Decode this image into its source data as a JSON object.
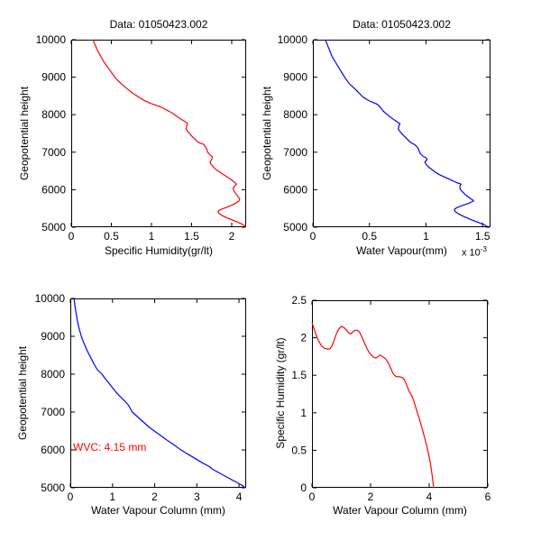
{
  "chart_data": [
    {
      "type": "line",
      "name": "specific-humidity-vs-height",
      "title": "Data: 01050423.002",
      "xlabel": "Specific Humidity(gr/lt)",
      "ylabel": "Geopotential height",
      "line_color": "#ff0000",
      "grid": false,
      "xlim": [
        0,
        2.18
      ],
      "ylim": [
        5000,
        10000
      ],
      "xticks": [
        0,
        0.5,
        1,
        1.5,
        2
      ],
      "xtick_labels": [
        "0",
        "0.5",
        "1",
        "1.5",
        "2"
      ],
      "yticks": [
        5000,
        6000,
        7000,
        8000,
        9000,
        10000
      ],
      "ytick_labels": [
        "5000",
        "6000",
        "7000",
        "8000",
        "9000",
        "10000"
      ],
      "points": [
        [
          0.27,
          10000
        ],
        [
          0.3,
          9850
        ],
        [
          0.33,
          9700
        ],
        [
          0.37,
          9550
        ],
        [
          0.41,
          9400
        ],
        [
          0.46,
          9250
        ],
        [
          0.51,
          9100
        ],
        [
          0.56,
          8960
        ],
        [
          0.62,
          8830
        ],
        [
          0.68,
          8720
        ],
        [
          0.75,
          8600
        ],
        [
          0.83,
          8480
        ],
        [
          0.91,
          8380
        ],
        [
          0.99,
          8300
        ],
        [
          1.06,
          8250
        ],
        [
          1.1,
          8220
        ],
        [
          1.13,
          8190
        ],
        [
          1.21,
          8100
        ],
        [
          1.27,
          8030
        ],
        [
          1.32,
          7950
        ],
        [
          1.37,
          7880
        ],
        [
          1.43,
          7800
        ],
        [
          1.45,
          7770
        ],
        [
          1.44,
          7700
        ],
        [
          1.43,
          7620
        ],
        [
          1.45,
          7560
        ],
        [
          1.48,
          7480
        ],
        [
          1.52,
          7390
        ],
        [
          1.55,
          7330
        ],
        [
          1.58,
          7270
        ],
        [
          1.62,
          7230
        ],
        [
          1.65,
          7210
        ],
        [
          1.67,
          7150
        ],
        [
          1.69,
          7080
        ],
        [
          1.7,
          7000
        ],
        [
          1.73,
          6930
        ],
        [
          1.76,
          6870
        ],
        [
          1.75,
          6800
        ],
        [
          1.73,
          6740
        ],
        [
          1.74,
          6680
        ],
        [
          1.77,
          6610
        ],
        [
          1.8,
          6540
        ],
        [
          1.85,
          6470
        ],
        [
          1.9,
          6400
        ],
        [
          1.95,
          6330
        ],
        [
          2.0,
          6260
        ],
        [
          2.04,
          6190
        ],
        [
          2.06,
          6150
        ],
        [
          2.04,
          6100
        ],
        [
          2.02,
          6050
        ],
        [
          2.02,
          6000
        ],
        [
          2.04,
          5930
        ],
        [
          2.06,
          5870
        ],
        [
          2.08,
          5810
        ],
        [
          2.1,
          5750
        ],
        [
          2.09,
          5700
        ],
        [
          2.05,
          5640
        ],
        [
          1.99,
          5580
        ],
        [
          1.92,
          5520
        ],
        [
          1.86,
          5470
        ],
        [
          1.83,
          5430
        ],
        [
          1.84,
          5370
        ],
        [
          1.88,
          5310
        ],
        [
          1.94,
          5250
        ],
        [
          2.01,
          5190
        ],
        [
          2.08,
          5130
        ],
        [
          2.13,
          5080
        ],
        [
          2.16,
          5040
        ],
        [
          2.18,
          5000
        ]
      ]
    },
    {
      "type": "line",
      "name": "water-vapour-vs-height",
      "title": "Data: 01050423.002",
      "xlabel": "Water Vapour(mm)",
      "ylabel": "Geopotential height",
      "x_scale_label": {
        "prefix": "x 10",
        "exponent": "-3"
      },
      "line_color": "#0000ff",
      "grid": false,
      "xlim": [
        0,
        1.57
      ],
      "ylim": [
        5000,
        10000
      ],
      "xticks": [
        0,
        0.5,
        1,
        1.5
      ],
      "xtick_labels": [
        "0",
        "0.5",
        "1",
        "1.5"
      ],
      "yticks": [
        5000,
        6000,
        7000,
        8000,
        9000,
        10000
      ],
      "ytick_labels": [
        "5000",
        "6000",
        "7000",
        "8000",
        "9000",
        "10000"
      ],
      "points": [
        [
          0.11,
          10000
        ],
        [
          0.13,
          9850
        ],
        [
          0.15,
          9700
        ],
        [
          0.17,
          9550
        ],
        [
          0.2,
          9400
        ],
        [
          0.23,
          9250
        ],
        [
          0.26,
          9100
        ],
        [
          0.29,
          8960
        ],
        [
          0.32,
          8830
        ],
        [
          0.36,
          8720
        ],
        [
          0.4,
          8600
        ],
        [
          0.44,
          8480
        ],
        [
          0.48,
          8400
        ],
        [
          0.52,
          8340
        ],
        [
          0.56,
          8290
        ],
        [
          0.58,
          8250
        ],
        [
          0.6,
          8180
        ],
        [
          0.62,
          8100
        ],
        [
          0.65,
          8020
        ],
        [
          0.68,
          7950
        ],
        [
          0.71,
          7880
        ],
        [
          0.75,
          7800
        ],
        [
          0.77,
          7760
        ],
        [
          0.76,
          7700
        ],
        [
          0.755,
          7620
        ],
        [
          0.77,
          7550
        ],
        [
          0.79,
          7480
        ],
        [
          0.82,
          7390
        ],
        [
          0.84,
          7330
        ],
        [
          0.86,
          7270
        ],
        [
          0.9,
          7200
        ],
        [
          0.92,
          7150
        ],
        [
          0.93,
          7100
        ],
        [
          0.94,
          7030
        ],
        [
          0.95,
          6960
        ],
        [
          0.97,
          6900
        ],
        [
          1.0,
          6850
        ],
        [
          1.01,
          6800
        ],
        [
          0.99,
          6740
        ],
        [
          1.0,
          6680
        ],
        [
          1.02,
          6610
        ],
        [
          1.05,
          6540
        ],
        [
          1.08,
          6470
        ],
        [
          1.12,
          6400
        ],
        [
          1.17,
          6330
        ],
        [
          1.22,
          6260
        ],
        [
          1.27,
          6190
        ],
        [
          1.31,
          6150
        ],
        [
          1.3,
          6100
        ],
        [
          1.3,
          6040
        ],
        [
          1.31,
          5980
        ],
        [
          1.33,
          5920
        ],
        [
          1.35,
          5860
        ],
        [
          1.38,
          5790
        ],
        [
          1.41,
          5730
        ],
        [
          1.42,
          5700
        ],
        [
          1.38,
          5640
        ],
        [
          1.32,
          5580
        ],
        [
          1.27,
          5520
        ],
        [
          1.25,
          5470
        ],
        [
          1.26,
          5410
        ],
        [
          1.29,
          5350
        ],
        [
          1.34,
          5280
        ],
        [
          1.4,
          5200
        ],
        [
          1.46,
          5130
        ],
        [
          1.51,
          5070
        ],
        [
          1.55,
          5010
        ]
      ]
    },
    {
      "type": "line",
      "name": "water-vapour-column-vs-height",
      "title": "",
      "xlabel": "Water Vapour Column (mm)",
      "ylabel": "Geopotential height",
      "annotation": {
        "text": "WVC: 4.15 mm",
        "color": "#ff0000"
      },
      "line_color": "#0000ff",
      "grid": false,
      "xlim": [
        0,
        4.17
      ],
      "ylim": [
        5000,
        10000
      ],
      "xticks": [
        0,
        1,
        2,
        3,
        4
      ],
      "xtick_labels": [
        "0",
        "1",
        "2",
        "3",
        "4"
      ],
      "yticks": [
        5000,
        6000,
        7000,
        8000,
        9000,
        10000
      ],
      "ytick_labels": [
        "5000",
        "6000",
        "7000",
        "8000",
        "9000",
        "10000"
      ],
      "points": [
        [
          0.09,
          10000
        ],
        [
          0.11,
          9800
        ],
        [
          0.14,
          9600
        ],
        [
          0.17,
          9400
        ],
        [
          0.21,
          9200
        ],
        [
          0.26,
          9000
        ],
        [
          0.31,
          8850
        ],
        [
          0.37,
          8700
        ],
        [
          0.43,
          8550
        ],
        [
          0.5,
          8400
        ],
        [
          0.57,
          8250
        ],
        [
          0.64,
          8120
        ],
        [
          0.75,
          8000
        ],
        [
          0.83,
          7880
        ],
        [
          0.92,
          7760
        ],
        [
          1.0,
          7640
        ],
        [
          1.08,
          7530
        ],
        [
          1.18,
          7410
        ],
        [
          1.28,
          7300
        ],
        [
          1.38,
          7180
        ],
        [
          1.47,
          7000
        ],
        [
          1.6,
          6870
        ],
        [
          1.72,
          6750
        ],
        [
          1.85,
          6620
        ],
        [
          1.99,
          6500
        ],
        [
          2.14,
          6380
        ],
        [
          2.29,
          6260
        ],
        [
          2.45,
          6140
        ],
        [
          2.6,
          6020
        ],
        [
          2.77,
          5900
        ],
        [
          2.95,
          5780
        ],
        [
          3.13,
          5660
        ],
        [
          3.3,
          5560
        ],
        [
          3.36,
          5500
        ],
        [
          3.55,
          5380
        ],
        [
          3.75,
          5260
        ],
        [
          3.95,
          5140
        ],
        [
          4.05,
          5080
        ],
        [
          4.15,
          5000
        ]
      ]
    },
    {
      "type": "line",
      "name": "specific-humidity-vs-water-vapour-column",
      "title": "",
      "xlabel": "Water Vapour Column (mm)",
      "ylabel": "Specific Humidity (gr/lt)",
      "line_color": "#ff0000",
      "grid": false,
      "xlim": [
        0,
        6
      ],
      "ylim": [
        0,
        2.5
      ],
      "xticks": [
        0,
        2,
        4,
        6
      ],
      "xtick_labels": [
        "0",
        "2",
        "4",
        "6"
      ],
      "yticks": [
        0,
        0.5,
        1,
        1.5,
        2,
        2.5
      ],
      "ytick_labels": [
        "0",
        "0.5",
        "1",
        "1.5",
        "2",
        "2.5"
      ],
      "points": [
        [
          0.0,
          2.2
        ],
        [
          0.03,
          2.17
        ],
        [
          0.07,
          2.12
        ],
        [
          0.12,
          2.06
        ],
        [
          0.18,
          2.0
        ],
        [
          0.25,
          1.94
        ],
        [
          0.33,
          1.89
        ],
        [
          0.42,
          1.86
        ],
        [
          0.52,
          1.85
        ],
        [
          0.6,
          1.85
        ],
        [
          0.68,
          1.89
        ],
        [
          0.76,
          1.97
        ],
        [
          0.84,
          2.06
        ],
        [
          0.92,
          2.12
        ],
        [
          1.0,
          2.15
        ],
        [
          1.08,
          2.14
        ],
        [
          1.16,
          2.11
        ],
        [
          1.24,
          2.07
        ],
        [
          1.32,
          2.05
        ],
        [
          1.4,
          2.08
        ],
        [
          1.48,
          2.1
        ],
        [
          1.56,
          2.1
        ],
        [
          1.63,
          2.07
        ],
        [
          1.7,
          2.01
        ],
        [
          1.78,
          1.94
        ],
        [
          1.86,
          1.87
        ],
        [
          1.94,
          1.81
        ],
        [
          2.02,
          1.77
        ],
        [
          2.1,
          1.74
        ],
        [
          2.18,
          1.73
        ],
        [
          2.26,
          1.75
        ],
        [
          2.33,
          1.77
        ],
        [
          2.4,
          1.75
        ],
        [
          2.48,
          1.73
        ],
        [
          2.55,
          1.7
        ],
        [
          2.62,
          1.65
        ],
        [
          2.7,
          1.58
        ],
        [
          2.77,
          1.52
        ],
        [
          2.84,
          1.49
        ],
        [
          2.92,
          1.48
        ],
        [
          3.0,
          1.48
        ],
        [
          3.08,
          1.47
        ],
        [
          3.15,
          1.44
        ],
        [
          3.22,
          1.38
        ],
        [
          3.3,
          1.3
        ],
        [
          3.37,
          1.25
        ],
        [
          3.42,
          1.22
        ],
        [
          3.48,
          1.15
        ],
        [
          3.55,
          1.06
        ],
        [
          3.62,
          0.97
        ],
        [
          3.7,
          0.87
        ],
        [
          3.78,
          0.76
        ],
        [
          3.85,
          0.66
        ],
        [
          3.92,
          0.55
        ],
        [
          3.98,
          0.45
        ],
        [
          4.04,
          0.33
        ],
        [
          4.09,
          0.2
        ],
        [
          4.13,
          0.08
        ],
        [
          4.15,
          0.0
        ]
      ]
    }
  ]
}
